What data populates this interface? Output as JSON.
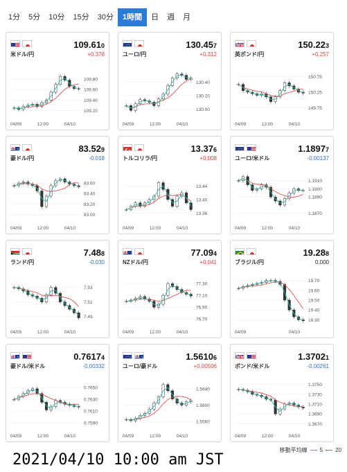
{
  "tabs": [
    {
      "label": "1分",
      "active": false
    },
    {
      "label": "5分",
      "active": false
    },
    {
      "label": "10分",
      "active": false
    },
    {
      "label": "15分",
      "active": false
    },
    {
      "label": "30分",
      "active": false
    },
    {
      "label": "1時間",
      "active": true
    },
    {
      "label": "日",
      "active": false
    },
    {
      "label": "週",
      "active": false
    },
    {
      "label": "月",
      "active": false
    }
  ],
  "colors": {
    "up": "#e03c3c",
    "down": "#2e6fd8",
    "flat": "#222222",
    "ma5": "#2bb9a2",
    "ma20": "#e05050",
    "active_tab": "#2b7bd8"
  },
  "cards": [
    {
      "pair": "米ドル/円",
      "flags": [
        "us",
        "jp"
      ],
      "price": "109.61",
      "price_last": "0",
      "change": "+0.378",
      "direction": "up",
      "y_ticks": [
        "109.80",
        "109.60",
        "109.40",
        "109.20"
      ],
      "y_range": [
        109.1,
        110.0
      ],
      "x_ticks": [
        "04/09",
        "12:00",
        "04/10"
      ],
      "path": [
        109.25,
        109.22,
        109.28,
        109.3,
        109.32,
        109.28,
        109.35,
        109.4,
        109.55,
        109.7,
        109.85,
        109.78,
        109.66,
        109.62,
        109.61
      ]
    },
    {
      "pair": "ユーロ/円",
      "flags": [
        "eu",
        "jp"
      ],
      "price": "130.45",
      "price_last": "7",
      "change": "+0.312",
      "direction": "up",
      "y_ticks": [
        "130.40",
        "130.20",
        "130.00"
      ],
      "y_range": [
        129.9,
        130.6
      ],
      "x_ticks": [
        "04/09",
        "12:00",
        "04/10"
      ],
      "path": [
        130.05,
        129.98,
        130.08,
        130.14,
        130.12,
        130.1,
        130.05,
        130.15,
        130.22,
        130.35,
        130.46,
        130.52,
        130.5,
        130.44,
        130.46
      ]
    },
    {
      "pair": "英ポンド/円",
      "flags": [
        "gb",
        "jp"
      ],
      "price": "150.22",
      "price_last": "3",
      "change": "+0.257",
      "direction": "up",
      "y_ticks": [
        "150.75",
        "150.25",
        "149.75"
      ],
      "y_range": [
        149.5,
        151.0
      ],
      "x_ticks": [
        "04/09",
        "12:00",
        "04/10"
      ],
      "path": [
        150.5,
        150.3,
        150.25,
        150.2,
        150.15,
        150.2,
        150.1,
        149.95,
        150.1,
        150.3,
        150.55,
        150.45,
        150.35,
        150.25,
        150.22
      ]
    },
    {
      "pair": "豪ドル/円",
      "flags": [
        "au",
        "jp"
      ],
      "price": "83.52",
      "price_last": "9",
      "change": "-0.018",
      "direction": "down",
      "y_ticks": [
        "83.60",
        "83.40",
        "83.20",
        "83.00"
      ],
      "y_range": [
        82.9,
        83.8
      ],
      "x_ticks": [
        "04/09",
        "12:00",
        "04/10"
      ],
      "path": [
        83.55,
        83.6,
        83.62,
        83.58,
        83.55,
        83.45,
        83.15,
        83.35,
        83.55,
        83.65,
        83.68,
        83.62,
        83.58,
        83.55,
        83.53
      ]
    },
    {
      "pair": "トルコリラ/円",
      "flags": [
        "tr",
        "jp"
      ],
      "price": "13.37",
      "price_last": "6",
      "change": "+0.008",
      "direction": "up",
      "y_ticks": [
        "13.44",
        "13.40",
        "13.36"
      ],
      "y_range": [
        13.34,
        13.48
      ],
      "x_ticks": [
        "04/09",
        "12:00",
        "04/10"
      ],
      "path": [
        13.37,
        13.38,
        13.39,
        13.38,
        13.39,
        13.4,
        13.41,
        13.45,
        13.43,
        13.4,
        13.38,
        13.41,
        13.42,
        13.39,
        13.37
      ]
    },
    {
      "pair": "ユーロ/米ドル",
      "flags": [
        "eu",
        "us"
      ],
      "price": "1.1897",
      "price_last": "7",
      "change": "-0.00137",
      "direction": "down",
      "y_ticks": [
        "1.1910",
        "1.1900",
        "1.1890",
        "1.1870"
      ],
      "y_range": [
        1.1862,
        1.192
      ],
      "x_ticks": [
        "04/09",
        "12:00",
        "04/10"
      ],
      "path": [
        1.191,
        1.1915,
        1.1905,
        1.1898,
        1.19,
        1.1905,
        1.1902,
        1.189,
        1.1885,
        1.188,
        1.1888,
        1.1895,
        1.19,
        1.1898,
        1.1898
      ]
    },
    {
      "pair": "ランド/円",
      "flags": [
        "za",
        "jp"
      ],
      "price": "7.48",
      "price_last": "8",
      "change": "-0.030",
      "direction": "down",
      "y_ticks": [
        "7.53",
        "7.51",
        "7.49"
      ],
      "y_range": [
        7.48,
        7.545
      ],
      "x_ticks": [
        "04/09",
        "12:00",
        "04/10"
      ],
      "path": [
        7.53,
        7.528,
        7.525,
        7.52,
        7.518,
        7.515,
        7.51,
        7.52,
        7.53,
        7.522,
        7.51,
        7.505,
        7.5,
        7.495,
        7.488
      ]
    },
    {
      "pair": "NZドル/円",
      "flags": [
        "nz",
        "jp"
      ],
      "price": "77.09",
      "price_last": "4",
      "change": "+0.041",
      "direction": "up",
      "y_ticks": [
        "77.30",
        "77.10",
        "76.90",
        "76.70"
      ],
      "y_range": [
        76.62,
        77.42
      ],
      "x_ticks": [
        "04/09",
        "12:00",
        "04/10"
      ],
      "path": [
        77.0,
        77.02,
        77.05,
        77.08,
        77.04,
        77.0,
        76.9,
        76.95,
        77.1,
        77.3,
        77.25,
        77.2,
        77.15,
        77.12,
        77.09
      ]
    },
    {
      "pair": "ブラジル/円",
      "flags": [
        "br",
        "jp"
      ],
      "price": "19.28",
      "price_last": "8",
      "change": "0.000",
      "direction": "flat",
      "y_ticks": [
        "19.70",
        "19.60",
        "19.50",
        "19.40",
        "19.30"
      ],
      "y_range": [
        19.26,
        19.74
      ],
      "x_ticks": [
        "04/09",
        "04/10"
      ],
      "path": [
        19.62,
        19.64,
        19.65,
        19.66,
        19.67,
        19.68,
        19.7,
        19.7,
        19.69,
        19.66,
        19.5,
        19.4,
        19.33,
        19.3,
        19.29
      ]
    },
    {
      "pair": "豪ドル/米ドル",
      "flags": [
        "au",
        "us"
      ],
      "price": "0.7617",
      "price_last": "4",
      "change": "-0.00332",
      "direction": "down",
      "y_ticks": [
        "0.7650",
        "0.7630",
        "0.7610",
        "0.7590"
      ],
      "y_range": [
        0.7582,
        0.7662
      ],
      "x_ticks": [
        "04/09",
        "12:00",
        "04/10"
      ],
      "path": [
        0.763,
        0.7635,
        0.764,
        0.7645,
        0.7648,
        0.764,
        0.7625,
        0.7612,
        0.7618,
        0.7628,
        0.7625,
        0.7622,
        0.762,
        0.7618,
        0.7617
      ]
    },
    {
      "pair": "ユーロ/豪ドル",
      "flags": [
        "eu",
        "au"
      ],
      "price": "1.5610",
      "price_last": "6",
      "change": "+0.00506",
      "direction": "up",
      "y_ticks": [
        "1.5640",
        "1.5600",
        "1.5560"
      ],
      "y_range": [
        1.5545,
        1.566
      ],
      "x_ticks": [
        "04/09",
        "12:00",
        "04/10"
      ],
      "path": [
        1.5565,
        1.5562,
        1.5568,
        1.5575,
        1.558,
        1.559,
        1.5605,
        1.562,
        1.565,
        1.5635,
        1.5615,
        1.5605,
        1.56,
        1.5608,
        1.5611
      ]
    },
    {
      "pair": "ポンド/米ドル",
      "flags": [
        "gb",
        "us"
      ],
      "price": "1.3702",
      "price_last": "1",
      "change": "-0.00261",
      "direction": "down",
      "y_ticks": [
        "1.3750",
        "1.3730",
        "1.3710",
        "1.3690",
        "1.3670"
      ],
      "y_range": [
        1.3662,
        1.3758
      ],
      "x_ticks": [
        "04/09",
        "12:00",
        "04/10"
      ],
      "path": [
        1.374,
        1.3738,
        1.3735,
        1.373,
        1.3728,
        1.3725,
        1.372,
        1.3718,
        1.369,
        1.37,
        1.371,
        1.3712,
        1.3708,
        1.3704,
        1.3702
      ]
    }
  ],
  "legend": {
    "label": "移動平均線",
    "ma5": "5",
    "ma20": "20"
  },
  "timestamp": "2021/04/10 10:00 am JST"
}
